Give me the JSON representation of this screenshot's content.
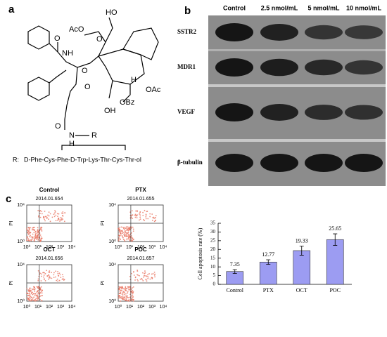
{
  "panel_a": {
    "label": "a",
    "atoms": [
      "HO",
      "AcO",
      "O",
      "H",
      "OAc",
      "OBz",
      "OH",
      "NH",
      "O",
      "O",
      "O",
      "O",
      "N",
      "R",
      "H"
    ],
    "r_label": "R:",
    "peptide": "D-Phe-Cys-Phe-D-Trp-Lys-Thr-Cys-Thr-ol"
  },
  "panel_b": {
    "label": "b",
    "columns": [
      "Control",
      "2.5 nmol/mL",
      "5 nmol/mL",
      "10 nmol/mL"
    ],
    "rows": [
      "SSTR2",
      "MDR1",
      "VEGF",
      "β-tubulin"
    ]
  },
  "panel_c": {
    "label": "c",
    "plots": [
      {
        "title": "Control",
        "id": "2014.01.654"
      },
      {
        "title": "PTX",
        "id": "2014.01.655"
      },
      {
        "title": "OCT",
        "id": "2014.01.656"
      },
      {
        "title": "POC",
        "id": "2014.01.657"
      }
    ],
    "axis_label": "PI",
    "ticks": [
      "10⁰",
      "10¹",
      "10²",
      "10³",
      "10⁴"
    ]
  },
  "chart_data": {
    "type": "bar",
    "y_label": "Cell apoptosis rate (%)",
    "categories": [
      "Control",
      "PTX",
      "OCT",
      "POC"
    ],
    "values": [
      7.35,
      12.77,
      19.33,
      25.65
    ],
    "errors": [
      1.1,
      1.3,
      2.6,
      3.3
    ],
    "color": "#9c9cf2",
    "ylim": [
      0,
      35
    ],
    "yticks": [
      0,
      5,
      10,
      15,
      20,
      25,
      30,
      35
    ]
  }
}
